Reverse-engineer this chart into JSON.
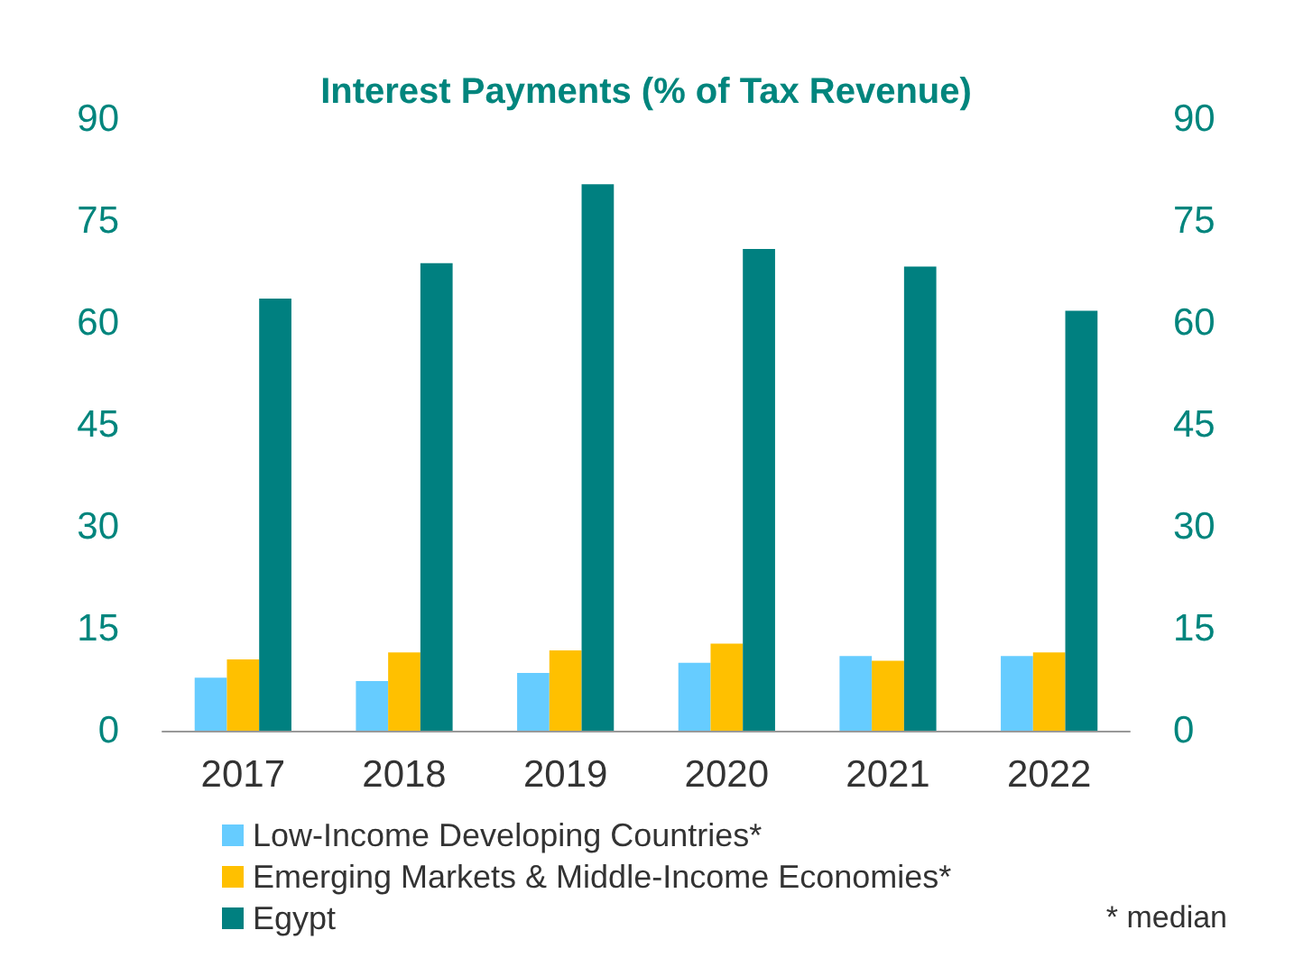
{
  "chart_data": {
    "type": "bar",
    "title": "Interest Payments (% of Tax Revenue)",
    "categories": [
      "2017",
      "2018",
      "2019",
      "2020",
      "2021",
      "2022"
    ],
    "series": [
      {
        "name": "Low-Income Developing Countries*",
        "color": "#66ccff",
        "values": [
          7.8,
          7.3,
          8.5,
          10,
          11,
          11
        ]
      },
      {
        "name": "Emerging Markets & Middle-Income Economies*",
        "color": "#ffc000",
        "values": [
          10.5,
          11.5,
          11.8,
          12.8,
          10.3,
          11.5
        ]
      },
      {
        "name": "Egypt",
        "color": "#008080",
        "values": [
          63.6,
          68.8,
          80.4,
          70.9,
          68.3,
          61.8
        ]
      }
    ],
    "ylim": [
      0,
      90
    ],
    "yticks": [
      0,
      15,
      30,
      45,
      60,
      75,
      90
    ],
    "y2lim": [
      0,
      90
    ],
    "y2ticks": [
      0,
      15,
      30,
      45,
      60,
      75,
      90
    ],
    "grid": false,
    "legend": "bottom",
    "annotations": [
      "* median"
    ]
  }
}
